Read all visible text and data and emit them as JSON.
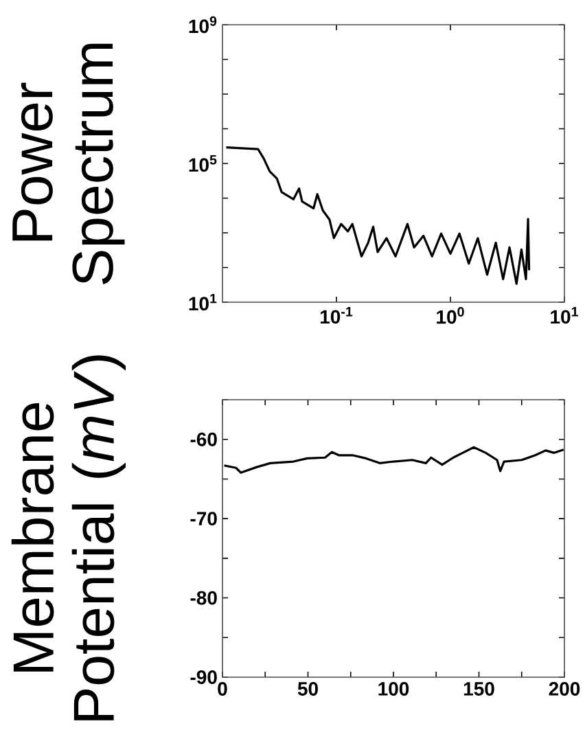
{
  "chart_data": [
    {
      "type": "line",
      "ylabel": "Power Spectrum",
      "log": "xy",
      "color": "#000000",
      "line_style": "solid",
      "xlim": [
        0.01,
        10
      ],
      "ylim": [
        10,
        1000000000
      ],
      "xticks": [
        {
          "value": 0.1,
          "label": "10$^{-1}$"
        },
        {
          "value": 1,
          "label": "10$^{0}$"
        },
        {
          "value": 10,
          "label": "10$^{1}$"
        }
      ],
      "yticks": [
        {
          "value": 10,
          "label": "10$^{1}$"
        },
        {
          "value": 100,
          "label": null
        },
        {
          "value": 1000,
          "label": null
        },
        {
          "value": 10000,
          "label": null
        },
        {
          "value": 100000,
          "label": "10$^{5}$"
        },
        {
          "value": 1000000,
          "label": null
        },
        {
          "value": 10000000,
          "label": null
        },
        {
          "value": 100000000,
          "label": null
        },
        {
          "value": 1000000000,
          "label": "10$^{9}$"
        }
      ],
      "x": [
        0.0108,
        0.0205,
        0.023,
        0.026,
        0.03,
        0.033,
        0.042,
        0.047,
        0.05,
        0.063,
        0.068,
        0.076,
        0.087,
        0.095,
        0.11,
        0.126,
        0.138,
        0.166,
        0.19,
        0.21,
        0.23,
        0.275,
        0.33,
        0.42,
        0.48,
        0.58,
        0.69,
        0.83,
        1.0,
        1.2,
        1.45,
        1.74,
        2.1,
        2.5,
        2.9,
        3.3,
        3.8,
        4.2,
        4.6,
        4.8,
        4.9
      ],
      "values": [
        290000,
        260000,
        140000,
        59000,
        37000,
        15000,
        9300,
        19000,
        8000,
        5100,
        13000,
        4400,
        2400,
        710,
        1800,
        1100,
        1800,
        210,
        520,
        1500,
        280,
        700,
        210,
        1800,
        380,
        820,
        210,
        950,
        250,
        950,
        130,
        700,
        62,
        520,
        46,
        380,
        34,
        330,
        46,
        2500,
        83
      ]
    },
    {
      "type": "line",
      "ylabel": "Membrane Potential (*mV*)",
      "color": "#000000",
      "line_style": "solid",
      "xlim": [
        0,
        200
      ],
      "ylim": [
        -90,
        -55
      ],
      "xticks": [
        0,
        {
          "value": 25,
          "label": null
        },
        50,
        {
          "value": 75,
          "label": null
        },
        100,
        {
          "value": 125,
          "label": null
        },
        150,
        {
          "value": 175,
          "label": null
        },
        200
      ],
      "yticks": [
        -90,
        {
          "value": -85,
          "label": null
        },
        -80,
        {
          "value": -75,
          "label": null
        },
        -70,
        {
          "value": -65,
          "label": null
        },
        -60,
        {
          "value": -55,
          "label": null
        }
      ],
      "x": [
        1,
        8,
        10.7,
        20,
        28,
        41.5,
        49.5,
        60,
        64,
        68,
        76,
        84,
        92,
        100,
        111,
        119,
        122,
        128.5,
        135,
        140.5,
        147,
        154,
        160.6,
        162.5,
        164.7,
        175,
        183,
        189,
        194,
        199.5
      ],
      "values": [
        -63.3,
        -63.6,
        -64.2,
        -63.5,
        -63.0,
        -62.8,
        -62.4,
        -62.3,
        -61.6,
        -62.0,
        -62.0,
        -62.4,
        -63.0,
        -62.8,
        -62.6,
        -63.0,
        -62.3,
        -63.2,
        -62.3,
        -61.7,
        -61.0,
        -61.7,
        -62.6,
        -64.0,
        -62.8,
        -62.6,
        -62.0,
        -61.4,
        -61.7,
        -61.3
      ]
    }
  ]
}
